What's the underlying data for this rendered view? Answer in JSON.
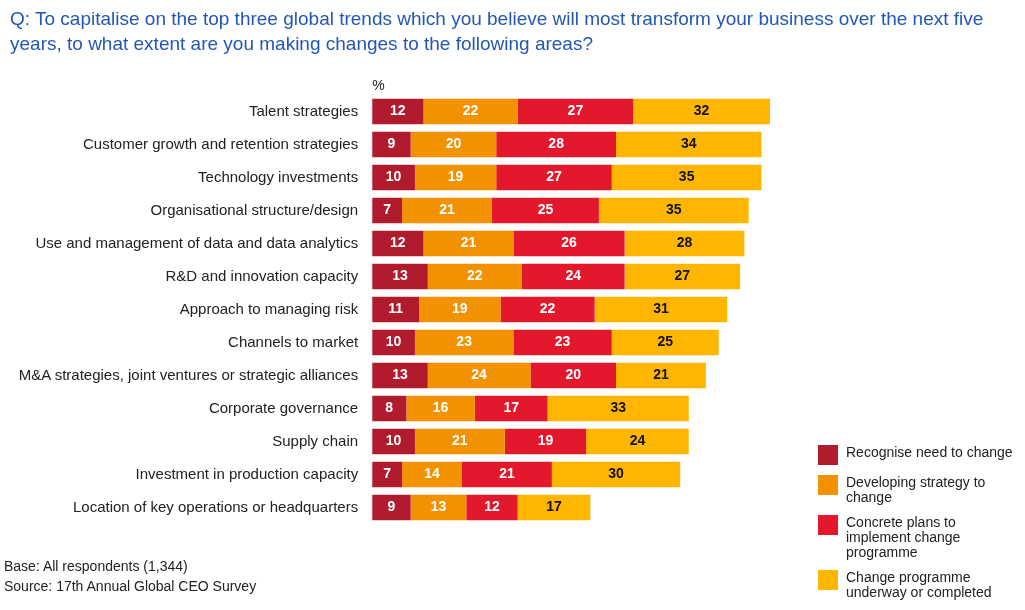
{
  "chart_data": {
    "type": "bar",
    "title": "Q: To capitalise on the top three global trends which you believe will most transform your business over the next five years, to what extent are you making changes to the following areas?",
    "xlabel": "%",
    "categories": [
      "Talent strategies",
      "Customer growth and retention strategies",
      "Technology investments",
      "Organisational structure/design",
      "Use and management of data and data analytics",
      "R&D and innovation capacity",
      "Approach to managing risk",
      "Channels to market",
      "M&A strategies, joint ventures or strategic alliances",
      "Corporate governance",
      "Supply chain",
      "Investment in production capacity",
      "Location of key operations or headquarters"
    ],
    "series": [
      {
        "name": "Recognise need to change",
        "color": "#b01c2e",
        "values": [
          12,
          9,
          10,
          7,
          12,
          13,
          11,
          10,
          13,
          8,
          10,
          7,
          9
        ]
      },
      {
        "name": "Developing strategy to change",
        "color": "#f39200",
        "values": [
          22,
          20,
          19,
          21,
          21,
          22,
          19,
          23,
          24,
          16,
          21,
          14,
          13
        ]
      },
      {
        "name": "Concrete plans to implement change programme",
        "color": "#e3182d",
        "values": [
          27,
          28,
          27,
          25,
          26,
          24,
          22,
          23,
          20,
          17,
          19,
          21,
          12
        ]
      },
      {
        "name": "Change programme underway or completed",
        "color": "#ffb600",
        "values": [
          32,
          34,
          35,
          35,
          28,
          27,
          31,
          25,
          21,
          33,
          24,
          30,
          17
        ]
      }
    ],
    "stacked": true,
    "orientation": "horizontal",
    "data_labels": true,
    "grid": false,
    "legend": "bottom right",
    "tick_labels": "y",
    "annotations": [
      "Base: All respondents (1,344)",
      "Source: 17th Annual Global CEO Survey"
    ]
  }
}
